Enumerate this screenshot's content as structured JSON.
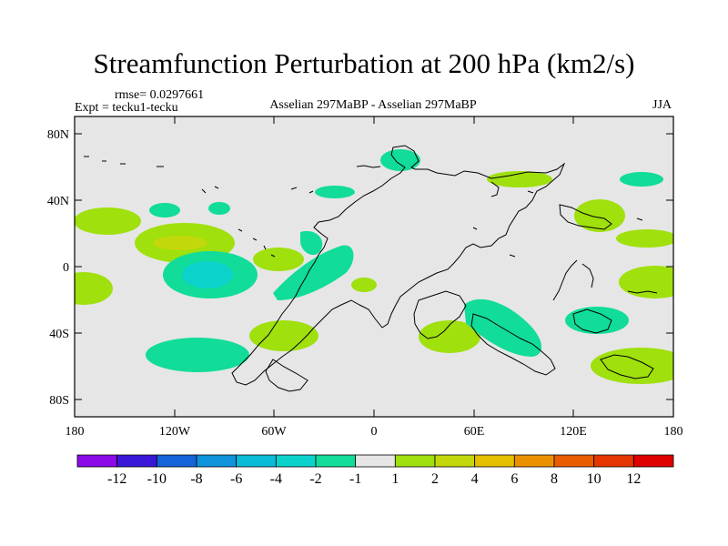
{
  "title": "Streamfunction Perturbation at 200 hPa (km2/s)",
  "rmse_label": "rmse= 0.0297661",
  "expt_label": "Expt = tecku1-tecku",
  "center_label": "Asselian 297MaBP - Asselian 297MaBP",
  "season_label": "JJA",
  "y_tick_labels": [
    "80N",
    "40N",
    "0",
    "40S",
    "80S"
  ],
  "x_tick_labels": [
    "180",
    "120W",
    "60W",
    "0",
    "60E",
    "120E",
    "180"
  ],
  "colorbar": {
    "labels": [
      "-12",
      "-10",
      "-8",
      "-6",
      "-4",
      "-2",
      "-1",
      "1",
      "2",
      "4",
      "6",
      "8",
      "10",
      "12"
    ],
    "colors": [
      "#8a0ae8",
      "#3a17d6",
      "#1565d8",
      "#0f93da",
      "#0bbcd8",
      "#0cd2cc",
      "#11dc99",
      "#e6e6e6",
      "#9fe00d",
      "#c3d80a",
      "#e5bf00",
      "#eb9100",
      "#ea5c00",
      "#e53500",
      "#df0000"
    ]
  },
  "colors": {
    "background": "#e6e6e6",
    "neg_weak": "#11dc99",
    "neg_mid": "#0cd2cc",
    "pos_weak": "#9fe00d",
    "pos_mid": "#c3d80a"
  }
}
